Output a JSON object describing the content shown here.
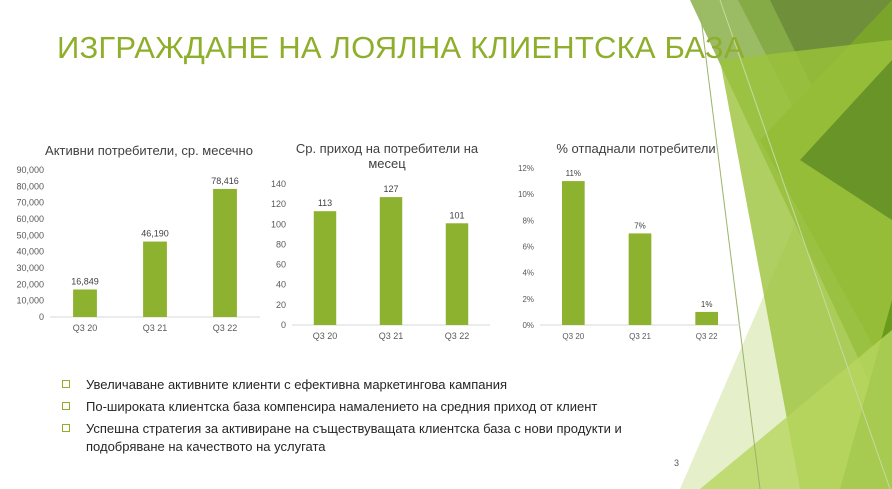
{
  "slide": {
    "title": "ИЗГРАЖДАНЕ НА ЛОЯЛНА КЛИЕНТСКА БАЗА",
    "page_number": "3",
    "bullets": [
      "Увеличаване активните клиенти с ефективна маркетингова кампания",
      "По-широката клиентска база компенсира намалението на средния приход от клиент",
      "Успешна стратегия за активиране на съществуващата клиентска база с нови продукти и подобряване на качеството на услугата"
    ]
  },
  "colors": {
    "accent": "#8fae2c",
    "bar": "#8db22f",
    "text": "#404040"
  },
  "chart_data": [
    {
      "type": "bar",
      "title": "Активни потребители, ср. месечно",
      "categories": [
        "Q3 20",
        "Q3 21",
        "Q3 22"
      ],
      "values": [
        16849,
        46190,
        78416
      ],
      "labels": [
        "16,849",
        "46,190",
        "78,416"
      ],
      "ylim": [
        0,
        90000
      ],
      "yticks": [
        "0",
        "10,000",
        "20,000",
        "30,000",
        "40,000",
        "50,000",
        "60,000",
        "70,000",
        "80,000",
        "90,000"
      ]
    },
    {
      "type": "bar",
      "title": "Ср. приход на потребители на месец",
      "categories": [
        "Q3 20",
        "Q3 21",
        "Q3 22"
      ],
      "values": [
        113,
        127,
        101
      ],
      "labels": [
        "113",
        "127",
        "101"
      ],
      "ylim": [
        0,
        140
      ],
      "yticks": [
        "0",
        "20",
        "40",
        "60",
        "80",
        "100",
        "120",
        "140"
      ]
    },
    {
      "type": "bar",
      "title": "% отпаднали потребители",
      "categories": [
        "Q3 20",
        "Q3 21",
        "Q3 22"
      ],
      "values": [
        11,
        7,
        1
      ],
      "labels": [
        "11%",
        "7%",
        "1%"
      ],
      "ylim": [
        0,
        12
      ],
      "yticks": [
        "0%",
        "2%",
        "4%",
        "6%",
        "8%",
        "10%",
        "12%"
      ]
    }
  ]
}
